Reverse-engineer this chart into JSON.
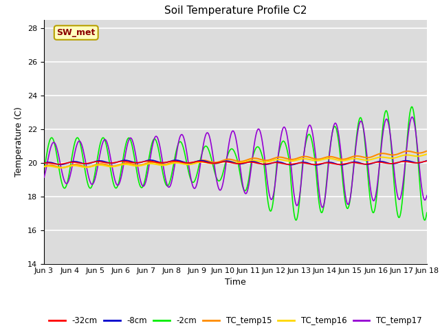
{
  "title": "Soil Temperature Profile C2",
  "xlabel": "Time",
  "ylabel": "Temperature (C)",
  "ylim": [
    14,
    28.5
  ],
  "xlim": [
    0,
    15
  ],
  "x_tick_labels": [
    "Jun 3",
    "Jun 4",
    "Jun 5",
    "Jun 6",
    "Jun 7",
    "Jun 8",
    "Jun 9",
    "Jun 10",
    "Jun 11",
    "Jun 12",
    "Jun 13",
    "Jun 14",
    "Jun 15",
    "Jun 16",
    "Jun 17",
    "Jun 18"
  ],
  "yticks": [
    14,
    16,
    18,
    20,
    22,
    24,
    26,
    28
  ],
  "annotation_text": "SW_met",
  "annotation_color": "#8B0000",
  "annotation_bg": "#FFFFC0",
  "annotation_border": "#B8A000",
  "colors": {
    "neg32cm": "#FF0000",
    "neg8cm": "#0000CC",
    "neg2cm": "#00EE00",
    "TC_temp15": "#FF8C00",
    "TC_temp16": "#FFD700",
    "TC_temp17": "#9400D3"
  },
  "legend_labels": [
    "-32cm",
    "-8cm",
    "-2cm",
    "TC_temp15",
    "TC_temp16",
    "TC_temp17"
  ],
  "bg_color": "#DCDCDC",
  "grid_color": "#FFFFFF",
  "title_fontsize": 11,
  "axis_fontsize": 9,
  "tick_fontsize": 8
}
